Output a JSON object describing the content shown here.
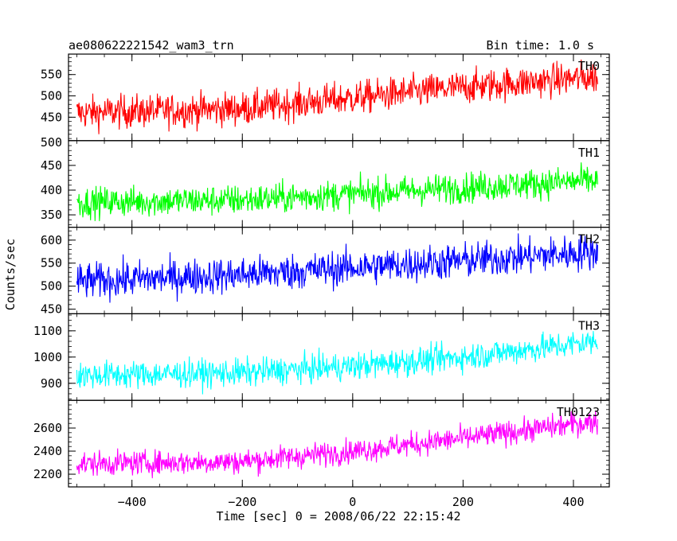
{
  "chart_data": {
    "type": "line",
    "title_left": "ae080622221542_wam3_trn",
    "title_right": "Bin time: 1.0 s",
    "xlabel": "Time [sec] 0 = 2008/06/22 22:15:42",
    "ylabel": "Counts/sec",
    "xlim": [
      -515,
      465
    ],
    "x_range": [
      -500,
      444
    ],
    "x_step": 1,
    "x_ticks": [
      -400,
      -200,
      0,
      200,
      400
    ],
    "x_tick_labels": [
      "−400",
      "−200",
      "0",
      "200",
      "400"
    ],
    "panels": [
      {
        "name": "TH0",
        "color": "#ff0000",
        "ylim": [
          395,
          598
        ],
        "y_ticks": [
          450,
          500,
          550
        ],
        "y_tick_labels": [
          "450",
          "500",
          "550"
        ],
        "extra_top_label": "",
        "trend": [
          [
            -500,
            460
          ],
          [
            -200,
            470
          ],
          [
            0,
            495
          ],
          [
            200,
            520
          ],
          [
            444,
            545
          ]
        ],
        "noise": 28
      },
      {
        "name": "TH1",
        "color": "#00ff00",
        "ylim": [
          325,
          500
        ],
        "y_ticks": [
          350,
          400,
          450
        ],
        "y_tick_labels": [
          "350",
          "400",
          "450"
        ],
        "extra_top_label": "500",
        "trend": [
          [
            -500,
            375
          ],
          [
            -200,
            380
          ],
          [
            0,
            392
          ],
          [
            200,
            405
          ],
          [
            444,
            420
          ]
        ],
        "noise": 22
      },
      {
        "name": "TH2",
        "color": "#0000ff",
        "ylim": [
          440,
          628
        ],
        "y_ticks": [
          450,
          500,
          550,
          600
        ],
        "y_tick_labels": [
          "450",
          "500",
          "550",
          "600"
        ],
        "extra_top_label": "",
        "trend": [
          [
            -500,
            510
          ],
          [
            -200,
            525
          ],
          [
            0,
            540
          ],
          [
            200,
            555
          ],
          [
            444,
            575
          ]
        ],
        "noise": 28
      },
      {
        "name": "TH3",
        "color": "#00ffff",
        "ylim": [
          835,
          1165
        ],
        "y_ticks": [
          900,
          1000,
          1100
        ],
        "y_tick_labels": [
          "900",
          "1000",
          "1100"
        ],
        "extra_top_label": "",
        "trend": [
          [
            -500,
            930
          ],
          [
            -200,
            940
          ],
          [
            0,
            965
          ],
          [
            200,
            1000
          ],
          [
            444,
            1060
          ]
        ],
        "noise": 38
      },
      {
        "name": "TH0123",
        "color": "#ff00ff",
        "ylim": [
          2090,
          2840
        ],
        "y_ticks": [
          2200,
          2400,
          2600
        ],
        "y_tick_labels": [
          "2200",
          "2400",
          "2600"
        ],
        "extra_top_label": "",
        "trend": [
          [
            -500,
            2290
          ],
          [
            -200,
            2310
          ],
          [
            0,
            2400
          ],
          [
            200,
            2510
          ],
          [
            444,
            2660
          ]
        ],
        "noise": 75
      }
    ]
  }
}
